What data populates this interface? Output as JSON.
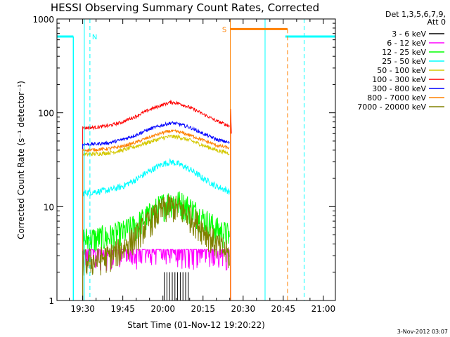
{
  "chart_data": {
    "type": "line",
    "title": "HESSI Observing Summary Count Rates, Corrected",
    "xlabel": "Start Time (01-Nov-12 19:20:22)",
    "ylabel": "Corrected Count Rate (s⁻¹ detector⁻¹)",
    "y_scale": "log",
    "ylim": [
      1,
      1000
    ],
    "xlim_minutes_of_day": [
      1160.37,
      1264.5
    ],
    "x_ticks": [
      {
        "label": "19:30",
        "t": 1170
      },
      {
        "label": "19:45",
        "t": 1185
      },
      {
        "label": "20:00",
        "t": 1200
      },
      {
        "label": "20:15",
        "t": 1215
      },
      {
        "label": "20:30",
        "t": 1230
      },
      {
        "label": "20:45",
        "t": 1245
      },
      {
        "label": "21:00",
        "t": 1260
      }
    ],
    "y_ticks": [
      {
        "label": "1",
        "v": 1
      },
      {
        "label": "10",
        "v": 10
      },
      {
        "label": "100",
        "v": 100
      },
      {
        "label": "1000",
        "v": 1000
      }
    ],
    "legend_header": [
      "Det 1,3,5,6,7,9,",
      "Att 0"
    ],
    "legend_position": "right",
    "series": [
      {
        "name": "3 - 6 keV",
        "color": "#000000",
        "x": [
          1200,
          1200.5,
          1201,
          1201.5,
          1202,
          1202.5,
          1203,
          1203.5,
          1204,
          1204.5,
          1205,
          1205.5,
          1206,
          1206.5,
          1207,
          1207.5,
          1208,
          1208.5,
          1209,
          1209.5,
          1210
        ],
        "y": [
          1,
          2,
          1,
          2,
          1,
          2,
          1,
          2,
          1,
          2,
          1,
          2,
          1,
          2,
          1,
          2,
          1,
          2,
          1,
          2,
          1
        ]
      },
      {
        "name": "6 - 12 keV",
        "color": "#ff00ff",
        "x": [
          1170,
          1175,
          1180,
          1185,
          1190,
          1195,
          1200,
          1205,
          1210,
          1215,
          1220,
          1225
        ],
        "y": [
          3.5,
          3.5,
          3.4,
          3.5,
          3.5,
          3.5,
          3.5,
          3.5,
          3.5,
          3.5,
          3.5,
          3.5
        ]
      },
      {
        "name": "12 - 25 keV",
        "color": "#00ff00",
        "x": [
          1170,
          1175,
          1180,
          1185,
          1190,
          1195,
          1200,
          1203,
          1206,
          1210,
          1215,
          1220,
          1225
        ],
        "y": [
          4.5,
          4.6,
          4.8,
          5.3,
          6.3,
          8.2,
          10.5,
          11.5,
          11.2,
          9.8,
          7.5,
          5.8,
          4.9
        ]
      },
      {
        "name": "25 - 50 keV",
        "color": "#00ffff",
        "x": [
          1170,
          1175,
          1180,
          1185,
          1190,
          1195,
          1200,
          1203,
          1206,
          1210,
          1215,
          1220,
          1225
        ],
        "y": [
          14,
          14.5,
          15,
          16.5,
          19.5,
          24,
          28.5,
          30,
          28.5,
          25,
          20,
          16.5,
          14.5
        ]
      },
      {
        "name": "50 - 100 keV",
        "color": "#d4c800",
        "x": [
          1170,
          1175,
          1180,
          1185,
          1190,
          1195,
          1200,
          1203,
          1206,
          1210,
          1215,
          1220,
          1225
        ],
        "y": [
          36,
          36.5,
          37.5,
          40,
          44,
          49,
          54,
          56,
          55,
          51,
          45,
          40,
          37
        ]
      },
      {
        "name": "100 - 300 keV",
        "color": "#ff0000",
        "x": [
          1170,
          1175,
          1180,
          1185,
          1190,
          1195,
          1200,
          1203,
          1206,
          1210,
          1215,
          1220,
          1225
        ],
        "y": [
          69,
          70,
          73,
          80,
          92,
          108,
          122,
          130,
          126,
          114,
          97,
          82,
          72
        ]
      },
      {
        "name": "300 - 800 keV",
        "color": "#0000ff",
        "x": [
          1170,
          1175,
          1180,
          1185,
          1190,
          1195,
          1200,
          1203,
          1206,
          1210,
          1215,
          1220,
          1225
        ],
        "y": [
          46,
          46.5,
          48,
          52,
          58,
          67,
          74,
          78,
          76,
          70,
          60,
          52,
          48
        ]
      },
      {
        "name": "800 - 7000 keV",
        "color": "#ff8000",
        "x": [
          1170,
          1175,
          1180,
          1185,
          1190,
          1195,
          1200,
          1203,
          1206,
          1210,
          1215,
          1220,
          1225
        ],
        "y": [
          40,
          40.5,
          41.5,
          44,
          48.5,
          55,
          61.5,
          64,
          62.5,
          58,
          51,
          45,
          42
        ]
      },
      {
        "name": "7000 - 20000 keV",
        "color": "#808000",
        "x": [
          1170,
          1175,
          1180,
          1185,
          1190,
          1195,
          1200,
          1203,
          1206,
          1210,
          1215,
          1220,
          1225
        ],
        "y": [
          2.6,
          2.7,
          3.0,
          3.6,
          4.8,
          7.0,
          9.4,
          10.2,
          9.6,
          8.0,
          5.8,
          4.0,
          3.0
        ]
      }
    ],
    "annotations": [
      {
        "label": "N",
        "color": "#00ffff"
      },
      {
        "label": "S",
        "color": "#ff8000"
      }
    ],
    "timestamp": "3-Nov-2012 03:07"
  }
}
